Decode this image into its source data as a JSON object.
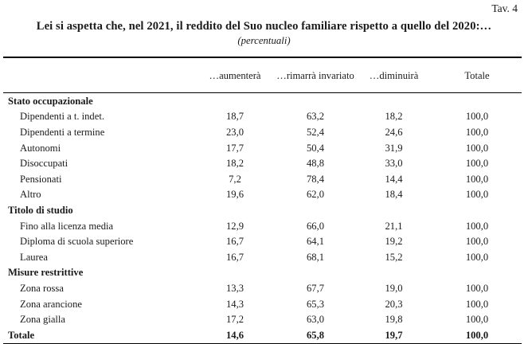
{
  "page": {
    "tag": "Tav. 4",
    "title": "Lei si aspetta che, nel 2021, il reddito del Suo nucleo familiare rispetto a quello del 2020:…",
    "subtitle": "(percentuali)"
  },
  "table": {
    "column_headers": [
      "…aumenterà",
      "…rimarrà invariato",
      "…diminuirà",
      "Totale"
    ],
    "rows": [
      {
        "type": "section",
        "label": "Stato occupazionale",
        "values": null
      },
      {
        "type": "item",
        "label": "Dipendenti a t. indet.",
        "values": [
          "18,7",
          "63,2",
          "18,2",
          "100,0"
        ]
      },
      {
        "type": "item",
        "label": "Dipendenti a termine",
        "values": [
          "23,0",
          "52,4",
          "24,6",
          "100,0"
        ]
      },
      {
        "type": "item",
        "label": "Autonomi",
        "values": [
          "17,7",
          "50,4",
          "31,9",
          "100,0"
        ]
      },
      {
        "type": "item",
        "label": "Disoccupati",
        "values": [
          "18,2",
          "48,8",
          "33,0",
          "100,0"
        ]
      },
      {
        "type": "item",
        "label": "Pensionati",
        "values": [
          "7,2",
          "78,4",
          "14,4",
          "100,0"
        ]
      },
      {
        "type": "item",
        "label": "Altro",
        "values": [
          "19,6",
          "62,0",
          "18,4",
          "100,0"
        ]
      },
      {
        "type": "section",
        "label": "Titolo di studio",
        "values": null
      },
      {
        "type": "item",
        "label": "Fino alla licenza media",
        "values": [
          "12,9",
          "66,0",
          "21,1",
          "100,0"
        ]
      },
      {
        "type": "item",
        "label": "Diploma di scuola superiore",
        "values": [
          "16,7",
          "64,1",
          "19,2",
          "100,0"
        ]
      },
      {
        "type": "item",
        "label": "Laurea",
        "values": [
          "16,7",
          "68,1",
          "15,2",
          "100,0"
        ]
      },
      {
        "type": "section",
        "label": "Misure restrittive",
        "values": null
      },
      {
        "type": "item",
        "label": "Zona rossa",
        "values": [
          "13,3",
          "67,7",
          "19,0",
          "100,0"
        ]
      },
      {
        "type": "item",
        "label": "Zona arancione",
        "values": [
          "14,3",
          "65,3",
          "20,3",
          "100,0"
        ]
      },
      {
        "type": "item",
        "label": "Zona gialla",
        "values": [
          "17,2",
          "63,0",
          "19,8",
          "100,0"
        ]
      }
    ],
    "total_row": {
      "label": "Totale",
      "values": [
        "14,6",
        "65,8",
        "19,7",
        "100,0"
      ]
    }
  },
  "colors": {
    "text": "#1a1a1a",
    "background": "#ffffff",
    "rule": "#000000"
  }
}
